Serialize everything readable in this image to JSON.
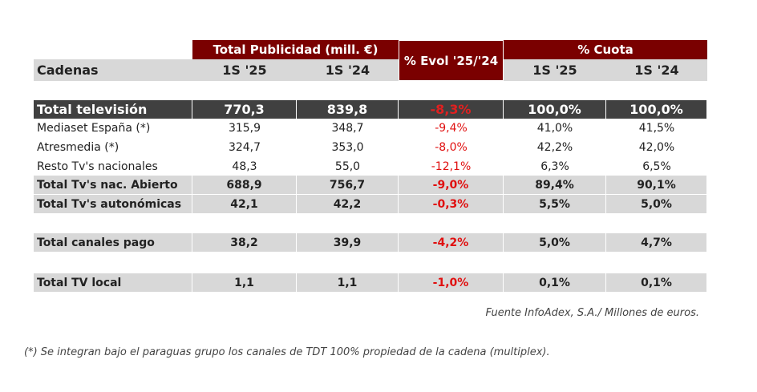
{
  "header": {
    "total_publicidad": "Total Publicidad (mill. €)",
    "evol": "% Evol '25/'24",
    "cuota": "% Cuota",
    "cadenas": "Cadenas",
    "s25": "1S '25",
    "s24": "1S '24"
  },
  "rows": [
    {
      "label": "Total televisión",
      "v25": "770,3",
      "v24": "839,8",
      "evol": "-8,3%",
      "c25": "100,0%",
      "c24": "100,0%"
    },
    {
      "label": "Mediaset España (*)",
      "v25": "315,9",
      "v24": "348,7",
      "evol": "-9,4%",
      "c25": "41,0%",
      "c24": "41,5%"
    },
    {
      "label": "Atresmedia (*)",
      "v25": "324,7",
      "v24": "353,0",
      "evol": "-8,0%",
      "c25": "42,2%",
      "c24": "42,0%"
    },
    {
      "label": "Resto Tv's nacionales",
      "v25": "48,3",
      "v24": "55,0",
      "evol": "-12,1%",
      "c25": "6,3%",
      "c24": "6,5%"
    },
    {
      "label": "Total Tv's nac. Abierto",
      "v25": "688,9",
      "v24": "756,7",
      "evol": "-9,0%",
      "c25": "89,4%",
      "c24": "90,1%"
    },
    {
      "label": "Total Tv's autonómicas",
      "v25": "42,1",
      "v24": "42,2",
      "evol": "-0,3%",
      "c25": "5,5%",
      "c24": "5,0%"
    },
    {
      "label": "Total canales pago",
      "v25": "38,2",
      "v24": "39,9",
      "evol": "-4,2%",
      "c25": "5,0%",
      "c24": "4,7%"
    },
    {
      "label": "Total TV local",
      "v25": "1,1",
      "v24": "1,1",
      "evol": "-1,0%",
      "c25": "0,1%",
      "c24": "0,1%"
    }
  ],
  "source": "Fuente InfoAdex, S.A./ Millones de euros.",
  "footnote": "(*) Se integran bajo el paraguas grupo los canales de TDT 100% propiedad de la cadena (multiplex)."
}
